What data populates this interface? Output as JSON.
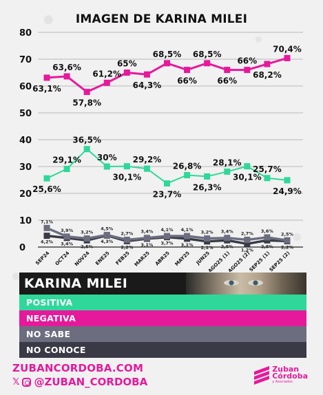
{
  "title": "IMAGEN DE KARINA MILEI",
  "chart_data": {
    "type": "line",
    "title": "IMAGEN DE KARINA MILEI",
    "categories": [
      "SEP24",
      "OCT24",
      "NOV24",
      "ENE25",
      "FEB25",
      "MAR25",
      "ABR25",
      "MAY25",
      "JUN25",
      "AGO25 (1)",
      "AGO25 (2)",
      "SEP25 (1)",
      "SEP25 (2)"
    ],
    "ylim": [
      0,
      80
    ],
    "yticks": [
      0,
      10,
      20,
      30,
      40,
      50,
      60,
      70,
      80
    ],
    "grid": true,
    "series": [
      {
        "name": "NEGATIVA",
        "color": "#e6199b",
        "values": [
          63.1,
          63.6,
          57.8,
          61.2,
          65,
          64.3,
          68.5,
          66,
          68.5,
          66,
          66,
          68.2,
          70.4
        ],
        "labels": [
          "63,1%",
          "63,6%",
          "57,8%",
          "61,2%",
          "65%",
          "64,3%",
          "68,5%",
          "66%",
          "68,5%",
          "66%",
          "66%",
          "68,2%",
          "70,4%"
        ]
      },
      {
        "name": "POSITIVA",
        "color": "#2fd89a",
        "values": [
          25.6,
          29.1,
          36.5,
          30,
          30.1,
          29.2,
          23.7,
          26.8,
          26.3,
          28.1,
          30.1,
          25.7,
          24.9
        ],
        "labels": [
          "25,6%",
          "29,1%",
          "36,5%",
          "30%",
          "30,1%",
          "29,2%",
          "23,7%",
          "26,8%",
          "26,3%",
          "28,1%",
          "30,1%",
          "25,7%",
          "24,9%"
        ]
      },
      {
        "name": "NO SABE",
        "color": "#6d6d80",
        "values": [
          7.1,
          3.9,
          3.2,
          4.5,
          2.7,
          3.4,
          4.1,
          4.1,
          3.2,
          3.4,
          2.7,
          3.6,
          2.5
        ],
        "labels": [
          "7,1%",
          "3,9%",
          "3,2%",
          "4,5%",
          "2,7%",
          "3,4%",
          "4,1%",
          "4,1%",
          "3,2%",
          "3,4%",
          "2,7%",
          "3,6%",
          "2,5%"
        ]
      },
      {
        "name": "NO CONOCE",
        "color": "#3a3a46",
        "values": [
          4.2,
          3.4,
          2.5,
          4.3,
          2.2,
          3.1,
          3.7,
          3.1,
          2.1,
          2.5,
          1.2,
          2.5,
          2.2
        ],
        "labels": [
          "4,2%",
          "3,4%",
          "2,5%",
          "4,3%",
          "2,2%",
          "3,1%",
          "3,7%",
          "3,1%",
          "2,1%",
          "2,5%",
          "1,2%",
          "2,5%",
          "2,2%"
        ]
      }
    ]
  },
  "legend": {
    "name": "KARINA MILEI",
    "items": [
      {
        "label": "POSITIVA",
        "color": "#2fd89a"
      },
      {
        "label": "NEGATIVA",
        "color": "#e6199b"
      },
      {
        "label": "NO SABE",
        "color": "#6d6d80"
      },
      {
        "label": "NO CONOCE",
        "color": "#3a3a46"
      }
    ]
  },
  "footer": {
    "url": "ZUBANCORDOBA.COM",
    "handle": "@ZUBAN_CORDOBA",
    "x_icon": "x-icon",
    "instagram_icon": "instagram-icon",
    "brand_main_1": "Zuban",
    "brand_main_2": "Córdoba",
    "brand_sub": "y Asociados"
  }
}
